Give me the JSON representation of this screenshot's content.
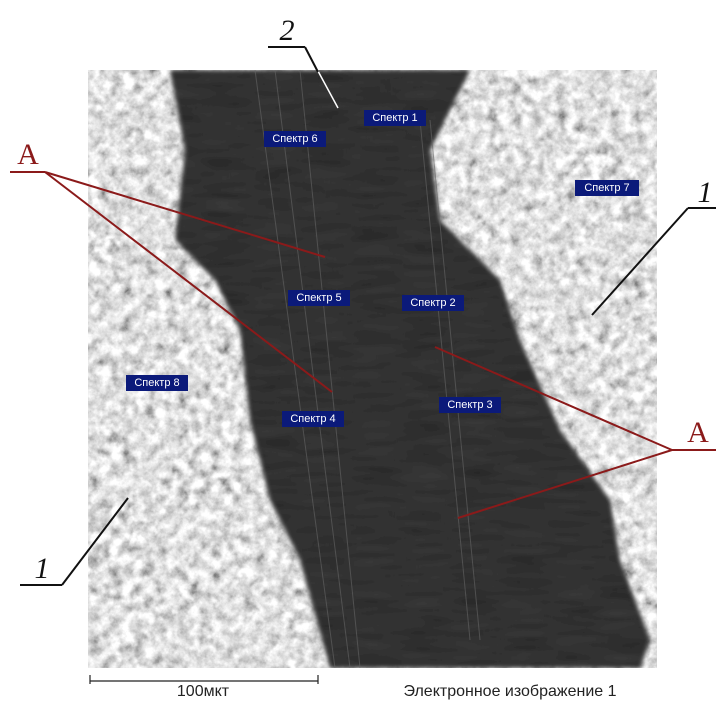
{
  "spectrum_labels": [
    "Спектр 1",
    "Спектр 2",
    "Спектр 3",
    "Спектр 4",
    "Спектр 5",
    "Спектр 6",
    "Спектр 7",
    "Спектр 8"
  ],
  "annotations": {
    "wear_zone": "A",
    "wear_zone_right": "A",
    "track": "2",
    "base_right": "1",
    "base_left": "1"
  },
  "scale_bar": "100мкт",
  "caption": "Электронное изображение 1"
}
